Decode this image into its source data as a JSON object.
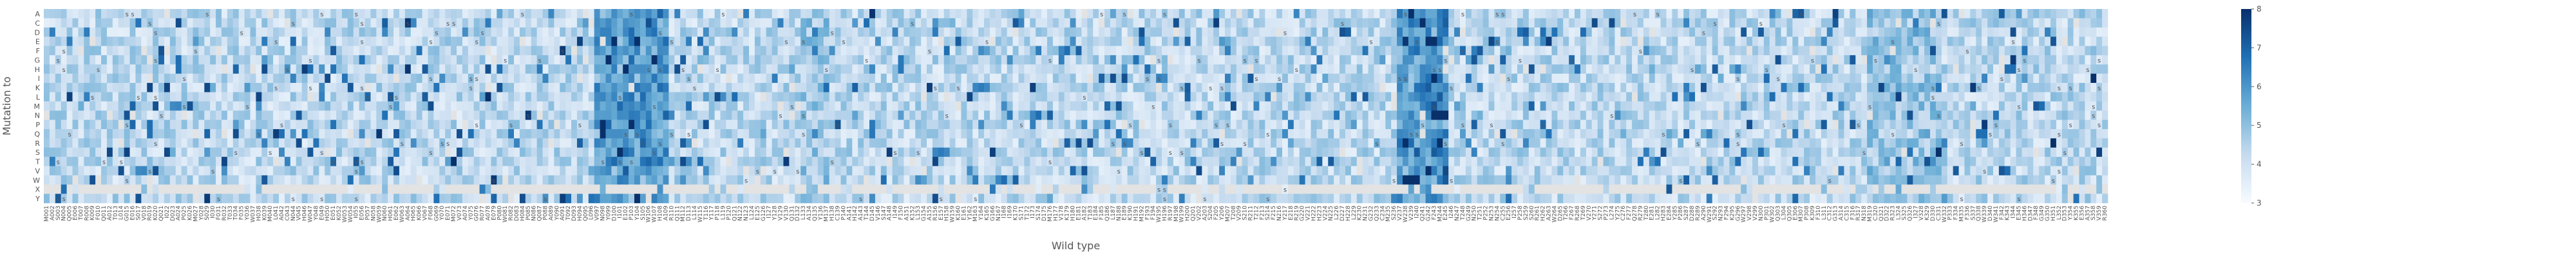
{
  "chart_data": {
    "type": "heatmap",
    "xlabel": "Wild type",
    "ylabel": "Mutation to",
    "rows": [
      "A",
      "C",
      "D",
      "E",
      "F",
      "G",
      "H",
      "I",
      "K",
      "L",
      "M",
      "N",
      "P",
      "Q",
      "R",
      "S",
      "T",
      "V",
      "W",
      "X",
      "Y"
    ],
    "row_note": "rows listed top to bottom; 'X' row is mostly missing/grey",
    "n_columns": 360,
    "columns_first": [
      "M001",
      "A002",
      "S003",
      "N004",
      "Q005",
      "E006",
      "T007",
      "R008",
      "K009",
      "F010",
      "Q011",
      "A012",
      "T013",
      "L014",
      "G015",
      "E016",
      "S017",
      "V018",
      "R019",
      "K020",
      "Q021",
      "I022",
      "D023",
      "A024",
      "P025"
    ],
    "columns_last": [
      "L352",
      "D353",
      "Y354",
      "K355",
      "E356",
      "A357",
      "S358",
      "V359",
      "R360"
    ],
    "column_label_prefix": "M001",
    "column_labels_rule": "residue letter + 3-digit position, 1..360; letters follow columns_first / columns_last, middle columns are illegible",
    "colorbar": {
      "min": 3,
      "max": 8,
      "ticks": [
        3,
        4,
        5,
        6,
        7,
        8
      ]
    },
    "cmap": {
      "low": "#f7fbff",
      "mid": "#6baed6",
      "high": "#08306b"
    },
    "missing_color": "#e3e3e3",
    "cell_marker": "s",
    "value_model": {
      "base": 4.3,
      "noise_amplitude": 1.4,
      "bands": [
        {
          "col_start": 96,
          "col_end": 108,
          "delta": 1.7
        },
        {
          "col_start": 132,
          "col_end": 136,
          "delta": 0.5
        },
        {
          "col_start": 236,
          "col_end": 244,
          "delta": 1.9
        },
        {
          "col_start": 318,
          "col_end": 330,
          "delta": 0.6
        }
      ],
      "missing_row": "X",
      "missing_fraction": 0.85,
      "marker_fraction": 0.035
    }
  },
  "colors": {
    "background": "#ffffff",
    "text": "#555555"
  }
}
